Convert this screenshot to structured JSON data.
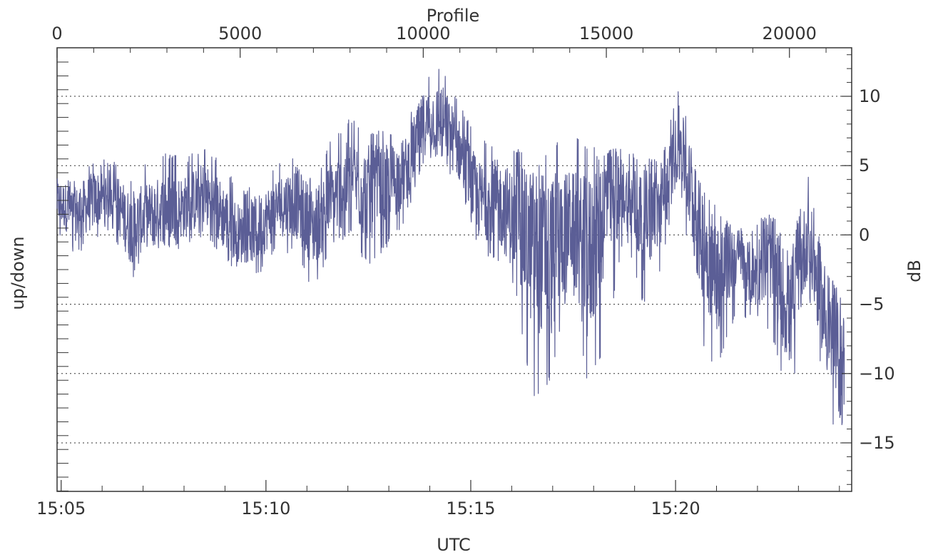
{
  "chart_data": {
    "type": "line",
    "xlabel": "UTC",
    "x2label": "Profile",
    "ylabel": "up/down",
    "y2label": "dB",
    "bottom_axis": {
      "range_minutes_from_1505": [
        -0.1,
        19.3
      ],
      "major_ticks": [
        "15:05",
        "15:10",
        "15:15",
        "15:20"
      ],
      "major_tick_minutes": [
        0,
        5,
        10,
        15
      ]
    },
    "top_axis": {
      "range": [
        0,
        21700
      ],
      "ticks": [
        "0",
        "5000",
        "10000",
        "15000",
        "20000"
      ],
      "tick_values": [
        0,
        5000,
        10000,
        15000,
        20000
      ]
    },
    "right_axis": {
      "range": [
        -18.5,
        13.5
      ],
      "ticks": [
        "10",
        "5",
        "0",
        "−5",
        "−10",
        "−15"
      ],
      "tick_values": [
        10,
        5,
        0,
        -5,
        -10,
        -15
      ]
    },
    "grid": "horizontal dotted at right-axis ticks",
    "series": [
      {
        "color": "#5b5e96",
        "profile": [
          0,
          500,
          1000,
          1500,
          2000,
          2500,
          3000,
          3500,
          4000,
          4500,
          5000,
          5500,
          6000,
          6500,
          7000,
          7500,
          8000,
          8500,
          9000,
          9500,
          10000,
          10500,
          11000,
          11500,
          12000,
          12500,
          13000,
          13500,
          14000,
          14500,
          15000,
          15500,
          16000,
          16500,
          17000,
          17500,
          18000,
          18500,
          19000,
          19500,
          20000,
          20500,
          21000,
          21500
        ],
        "db_center": [
          2.5,
          1.5,
          2.5,
          3.0,
          0.5,
          1.5,
          2.0,
          2.0,
          3.0,
          1.5,
          0.0,
          0.5,
          2.0,
          2.5,
          0.5,
          2.5,
          4.0,
          3.0,
          3.5,
          4.5,
          8.0,
          8.5,
          6.0,
          2.5,
          2.5,
          1.0,
          -1.0,
          -1.5,
          1.0,
          -2.0,
          2.5,
          3.0,
          1.0,
          2.0,
          7.0,
          0.5,
          -3.0,
          -1.5,
          -3.0,
          -1.5,
          -6.0,
          0.0,
          -6.5,
          -10.0
        ],
        "db_max": [
          4.5,
          4.0,
          5.5,
          5.5,
          4.0,
          5.5,
          6.0,
          5.5,
          6.5,
          5.5,
          3.0,
          4.0,
          5.0,
          6.0,
          4.0,
          7.0,
          8.5,
          7.5,
          7.5,
          8.0,
          11.5,
          12.5,
          9.5,
          7.0,
          6.5,
          6.5,
          5.0,
          6.5,
          7.5,
          6.5,
          6.0,
          6.5,
          5.5,
          5.5,
          11.0,
          4.0,
          2.0,
          0.5,
          0.5,
          2.0,
          -1.5,
          4.5,
          -2.5,
          -4.5
        ],
        "db_min": [
          0.0,
          -1.5,
          -0.5,
          0.5,
          -3.5,
          -1.0,
          -1.0,
          -1.0,
          0.0,
          -1.5,
          -3.0,
          -3.0,
          -1.0,
          -1.5,
          -4.0,
          -1.0,
          0.0,
          -2.5,
          -1.0,
          1.0,
          5.0,
          5.5,
          3.0,
          -1.0,
          -2.0,
          -4.0,
          -12.0,
          -10.5,
          -3.0,
          -11.0,
          -8.0,
          0.0,
          -5.0,
          -2.5,
          4.0,
          -7.5,
          -10.0,
          -6.0,
          -6.0,
          -7.0,
          -13.0,
          -4.0,
          -12.0,
          -17.5
        ]
      }
    ]
  }
}
